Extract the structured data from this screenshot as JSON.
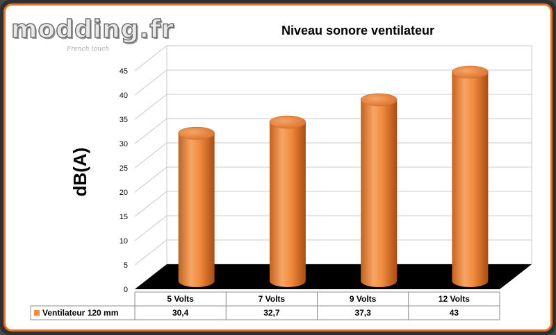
{
  "branding": {
    "logo_text": "modding.fr",
    "logo_subtext": "French touch"
  },
  "chart_data": {
    "type": "bar",
    "title": "Niveau sonore ventilateur",
    "ylabel": "dB(A)",
    "xlabel": "",
    "categories": [
      "5 Volts",
      "7 Volts",
      "9 Volts",
      "12 Volts"
    ],
    "series": [
      {
        "name": "Ventilateur 120 mm",
        "values": [
          30.4,
          32.7,
          37.3,
          43
        ],
        "labels": [
          "30,4",
          "32,7",
          "37,3",
          "43"
        ]
      }
    ],
    "ylim": [
      0,
      45
    ],
    "yticks": [
      0,
      5,
      10,
      15,
      20,
      25,
      30,
      35,
      40,
      45
    ],
    "grid": true,
    "data_table": true,
    "colors": {
      "bar": "#f08a3c",
      "bar_dark": "#b8561a",
      "bar_light": "#f9b47a",
      "floor": "#000000",
      "frame": "#ee6f1c"
    }
  }
}
